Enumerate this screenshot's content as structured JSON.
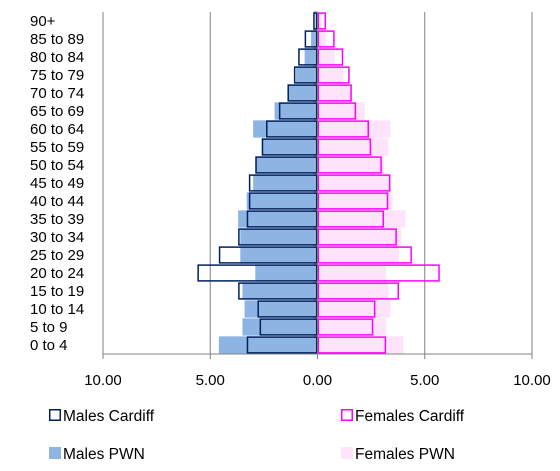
{
  "chart_data": {
    "type": "bar",
    "orientation": "horizontal",
    "subtype": "population-pyramid",
    "categories": [
      "0 to 4",
      "5 to 9",
      "10 to 14",
      "15 to 19",
      "20 to 24",
      "25 to 29",
      "30 to 34",
      "35 to 39",
      "40 to 44",
      "45 to 49",
      "50 to 54",
      "55 to 59",
      "60 to 64",
      "65 to 69",
      "70 to 74",
      "75 to 79",
      "80 to 84",
      "85 to 89",
      "90+"
    ],
    "xlim": [
      -10,
      10
    ],
    "xticks": [
      -10,
      -5,
      0,
      5,
      10
    ],
    "xtick_labels": [
      "10.00",
      "5.00",
      "0.00",
      "5.00",
      "10.00"
    ],
    "grid": "vertical",
    "legend_position": "bottom",
    "series": [
      {
        "name": "Males PWN",
        "side": "left",
        "style": "filled",
        "color": "#8eb4e3",
        "values": [
          4.6,
          3.5,
          3.4,
          3.5,
          2.9,
          3.6,
          3.6,
          3.7,
          3.3,
          3.0,
          2.9,
          2.6,
          3.0,
          2.0,
          1.4,
          1.0,
          0.6,
          0.3,
          0.1
        ]
      },
      {
        "name": "Females PWN",
        "side": "right",
        "style": "filled",
        "color": "#ffe3fb",
        "values": [
          4.0,
          3.2,
          3.4,
          3.3,
          3.2,
          3.8,
          3.9,
          4.1,
          3.5,
          3.4,
          3.1,
          3.3,
          3.4,
          2.2,
          1.6,
          1.2,
          0.8,
          0.4,
          0.2
        ]
      },
      {
        "name": "Males Cardiff",
        "side": "left",
        "style": "outline",
        "color": "#002060",
        "values": [
          3.3,
          2.7,
          2.8,
          3.7,
          5.6,
          4.6,
          3.7,
          3.3,
          3.2,
          3.2,
          2.9,
          2.6,
          2.4,
          1.8,
          1.4,
          1.1,
          0.9,
          0.6,
          0.2
        ]
      },
      {
        "name": "Females Cardiff",
        "side": "right",
        "style": "outline",
        "color": "#ff00ff",
        "values": [
          3.2,
          2.6,
          2.7,
          3.8,
          5.7,
          4.4,
          3.7,
          3.1,
          3.3,
          3.4,
          3.0,
          2.5,
          2.4,
          1.8,
          1.6,
          1.5,
          1.2,
          0.8,
          0.4
        ]
      }
    ],
    "legend": [
      {
        "label": "Males Cardiff",
        "style": "outline",
        "color": "#002060"
      },
      {
        "label": "Females Cardiff",
        "style": "outline",
        "color": "#ff00ff"
      },
      {
        "label": "Males PWN",
        "style": "filled",
        "color": "#8eb4e3"
      },
      {
        "label": "Females PWN",
        "style": "filled",
        "color": "#ffe3fb"
      }
    ],
    "axis_color": "#808080",
    "grid_color": "#808080"
  }
}
